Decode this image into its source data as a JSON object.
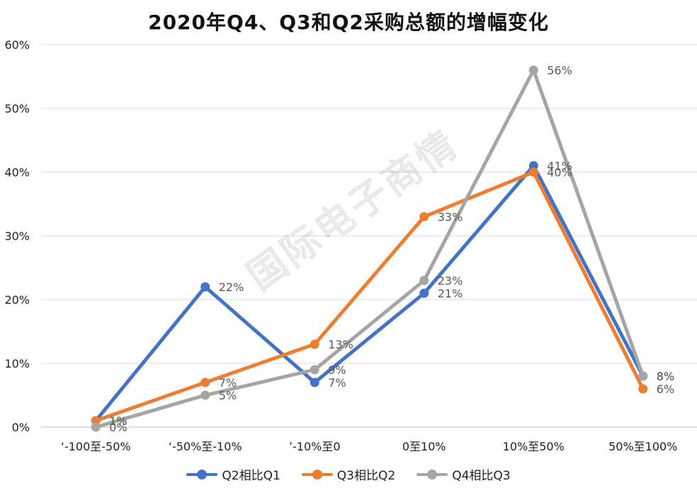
{
  "chart_data": {
    "type": "line",
    "title": "2020年Q4、Q3和Q2采购总额的增幅变化",
    "categories": [
      "‘-100至-50%",
      "‘-50%至-10%",
      "’-10%至0",
      "0至10%",
      "10%至50%",
      "50%至100%"
    ],
    "y_ticks": [
      "0%",
      "10%",
      "20%",
      "30%",
      "40%",
      "50%",
      "60%"
    ],
    "ylim": [
      0,
      60
    ],
    "grid": true,
    "legend_position": "bottom",
    "series": [
      {
        "name": "Q2相比Q1",
        "color": "#4472C4",
        "values": [
          1,
          22,
          7,
          21,
          41,
          8
        ],
        "labels": [
          "1%",
          "22%",
          "7%",
          "21%",
          "41%",
          "8%"
        ]
      },
      {
        "name": "Q3相比Q2",
        "color": "#ED7D31",
        "values": [
          1,
          7,
          13,
          33,
          40,
          6
        ],
        "labels": [
          "1%",
          "7%",
          "13%",
          "33%",
          "40%",
          "6%"
        ]
      },
      {
        "name": "Q4相比Q3",
        "color": "#A5A5A5",
        "values": [
          0,
          5,
          9,
          23,
          56,
          8
        ],
        "labels": [
          "0%",
          "5%",
          "9%",
          "23%",
          "56%",
          "8%"
        ]
      }
    ]
  },
  "watermark_text": "国际电子商情"
}
